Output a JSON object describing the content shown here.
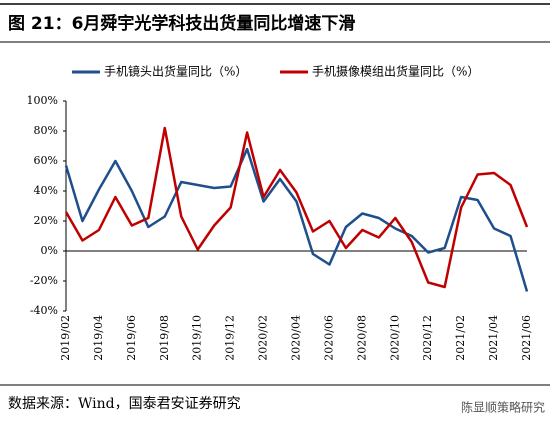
{
  "chart_data": {
    "type": "line",
    "title": "图 21：6月舜宇光学科技出货量同比增速下滑",
    "source": "数据来源：Wind，国泰君安证券研究",
    "watermark": "陈显顺策略研究",
    "categories": [
      "2019/02",
      null,
      "2019/04",
      null,
      "2019/06",
      null,
      "2019/08",
      null,
      "2019/10",
      null,
      "2019/12",
      null,
      "2020/02",
      null,
      "2020/04",
      null,
      "2020/06",
      null,
      "2020/08",
      null,
      "2020/10",
      null,
      "2020/12",
      null,
      "2021/02",
      null,
      "2021/04",
      null,
      "2021/06"
    ],
    "series": [
      {
        "name": "手机镜头出货量同比（%）",
        "color": "#1f4e8c",
        "values": [
          57,
          20,
          41,
          60,
          40,
          16,
          23,
          46,
          44,
          42,
          43,
          68,
          33,
          48,
          33,
          -2,
          -9,
          16,
          25,
          22,
          15,
          10,
          -1,
          2,
          36,
          34,
          15,
          10,
          -27
        ]
      },
      {
        "name": "手机摄像模组出货量同比（%）",
        "color": "#c00000",
        "values": [
          26,
          7,
          14,
          36,
          17,
          22,
          82,
          23,
          1,
          17,
          29,
          79,
          36,
          54,
          39,
          13,
          20,
          2,
          14,
          9,
          22,
          6,
          -21,
          -24,
          29,
          51,
          52,
          44,
          16
        ]
      }
    ],
    "ylim": [
      -40,
      100
    ],
    "yticks": [
      {
        "value": -40,
        "label": "-40%"
      },
      {
        "value": -20,
        "label": "-20%"
      },
      {
        "value": 0,
        "label": "0%"
      },
      {
        "value": 20,
        "label": "20%"
      },
      {
        "value": 40,
        "label": "40%"
      },
      {
        "value": 60,
        "label": "60%"
      },
      {
        "value": 80,
        "label": "80%"
      },
      {
        "value": 100,
        "label": "100%"
      }
    ]
  }
}
